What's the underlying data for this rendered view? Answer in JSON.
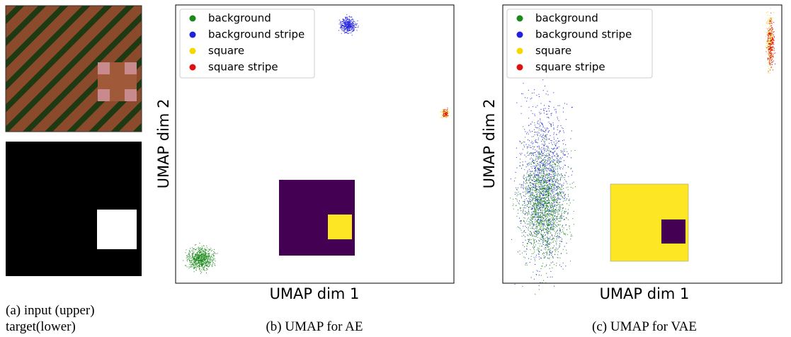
{
  "panel_a": {
    "caption": [
      "(a) input (upper)",
      "target(lower)"
    ]
  },
  "panel_b": {
    "caption": "(b) UMAP for AE",
    "xlabel": "UMAP dim 1",
    "ylabel": "UMAP dim 2",
    "legend": [
      {
        "name": "background",
        "color": "#1a8a1a"
      },
      {
        "name": "background stripe",
        "color": "#2020e0"
      },
      {
        "name": "square",
        "color": "#f5d800"
      },
      {
        "name": "square stripe",
        "color": "#e01010"
      }
    ]
  },
  "panel_c": {
    "caption": "(c) UMAP for VAE",
    "xlabel": "UMAP dim 1",
    "ylabel": "UMAP dim 2",
    "legend": [
      {
        "name": "background",
        "color": "#1a8a1a"
      },
      {
        "name": "background stripe",
        "color": "#2020e0"
      },
      {
        "name": "square",
        "color": "#f5d800"
      },
      {
        "name": "square stripe",
        "color": "#e01010"
      }
    ]
  }
}
